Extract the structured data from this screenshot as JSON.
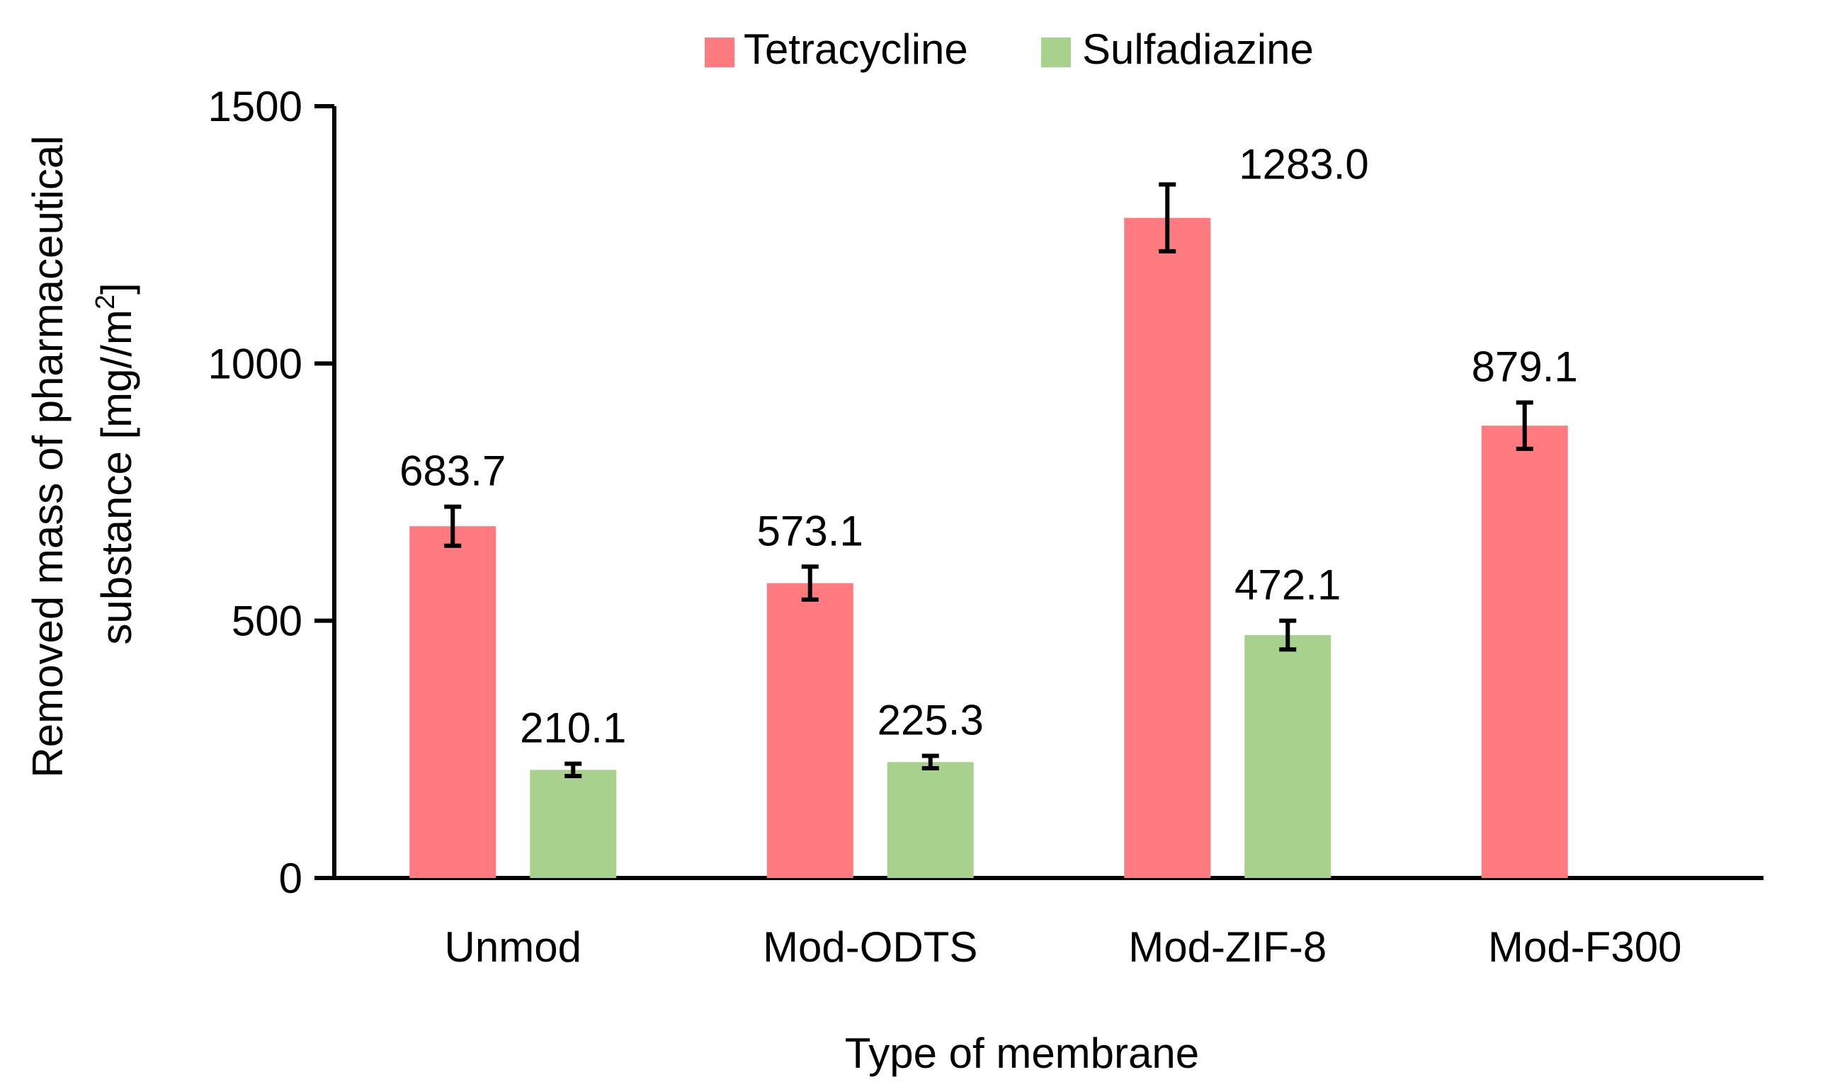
{
  "chart_data": {
    "type": "bar",
    "title": "",
    "xlabel": "Type of membrane",
    "ylabel_line1": "Removed mass of pharmaceutical",
    "ylabel_line2_prefix": "substance [mg//m",
    "ylabel_line2_sup": "2",
    "ylabel_line2_suffix": "]",
    "ylim": [
      0,
      1500
    ],
    "yticks": [
      "0",
      "500",
      "1000",
      "1500"
    ],
    "ytick_values": [
      0,
      500,
      1000,
      1500
    ],
    "categories": [
      "Unmod",
      "Mod-ODTS",
      "Mod-ZIF-8",
      "Mod-F300"
    ],
    "legend_position": "top-center",
    "grid": false,
    "series": [
      {
        "name": "Tetracycline",
        "color": "#FF7B80",
        "values": [
          683.7,
          573.1,
          1283.0,
          879.1
        ],
        "labels": [
          "683.7",
          "573.1",
          "1283.0",
          "879.1"
        ],
        "errors": [
          38,
          32,
          65,
          45
        ]
      },
      {
        "name": "Sulfadiazine",
        "color": "#A9D18E",
        "values": [
          210.1,
          225.3,
          472.1,
          null
        ],
        "labels": [
          "210.1",
          "225.3",
          "472.1",
          null
        ],
        "errors": [
          12,
          12,
          28,
          null
        ]
      }
    ]
  }
}
